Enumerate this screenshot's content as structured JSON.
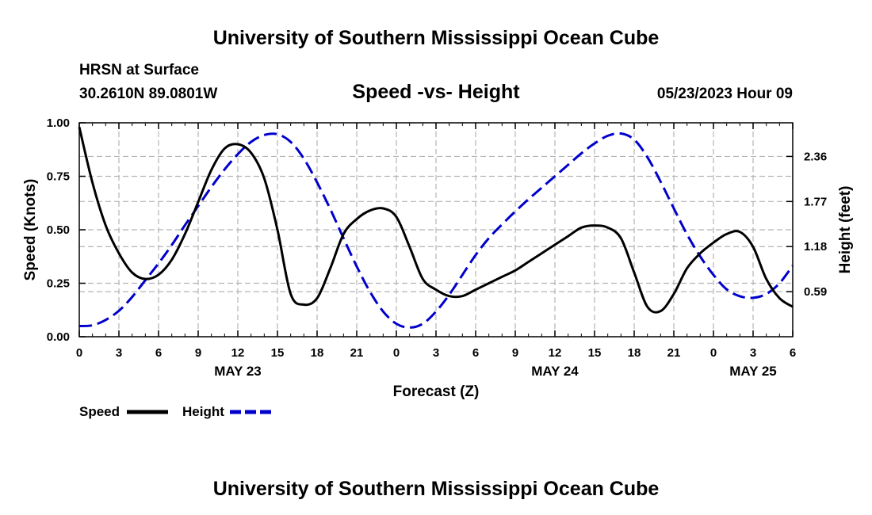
{
  "header": {
    "title": "University of Southern Mississippi Ocean Cube",
    "station": "HRSN at Surface",
    "coordinates": "30.2610N  89.0801W",
    "date_hour": "05/23/2023 Hour 09"
  },
  "footer": {
    "title": "University of Southern Mississippi Ocean Cube"
  },
  "colors": {
    "speed": "#000000",
    "height": "#0000cc",
    "grid": "#b4b4b4"
  },
  "chart_data": {
    "type": "line",
    "title": "Speed -vs- Height",
    "xlabel": "Forecast (Z)",
    "ylabel": "Speed (Knots)",
    "y2label": "Height (feet)",
    "xlim": [
      0,
      54
    ],
    "ylim": [
      0,
      1.0
    ],
    "y2lim": [
      0,
      2.8
    ],
    "x_ticks": [
      0,
      3,
      6,
      9,
      12,
      15,
      18,
      21,
      24,
      27,
      30,
      33,
      36,
      39,
      42,
      45,
      48,
      51,
      54
    ],
    "x_tick_labels": [
      "0",
      "3",
      "6",
      "9",
      "12",
      "15",
      "18",
      "21",
      "0",
      "3",
      "6",
      "9",
      "12",
      "15",
      "18",
      "21",
      "0",
      "3",
      "6"
    ],
    "date_labels": [
      {
        "x": 12,
        "label": "MAY 23"
      },
      {
        "x": 36,
        "label": "MAY 24"
      },
      {
        "x": 51,
        "label": "MAY 25"
      }
    ],
    "y_ticks": [
      0,
      0.25,
      0.5,
      0.75,
      1.0
    ],
    "y_tick_labels": [
      "0.00",
      "0.25",
      "0.50",
      "0.75",
      "1.00"
    ],
    "y2_ticks": [
      0.59,
      1.18,
      1.77,
      2.36
    ],
    "y2_tick_labels": [
      "0.59",
      "1.18",
      "1.77",
      "2.36"
    ],
    "grid": true,
    "legend": [
      {
        "name": "Speed",
        "style": "solid"
      },
      {
        "name": "Height",
        "style": "dashed"
      }
    ],
    "series": [
      {
        "name": "Speed",
        "axis": "left",
        "style": "solid",
        "x": [
          0,
          1,
          2,
          3,
          4,
          5,
          6,
          7,
          8,
          9,
          10,
          11,
          12,
          13,
          14,
          15,
          16,
          17,
          18,
          19,
          20,
          21,
          22,
          23,
          24,
          25,
          26,
          27,
          28,
          29,
          30,
          31,
          32,
          33,
          34,
          35,
          36,
          37,
          38,
          39,
          40,
          41,
          42,
          43,
          44,
          45,
          46,
          47,
          48,
          49,
          50,
          51,
          52,
          53,
          54
        ],
        "values": [
          0.98,
          0.72,
          0.52,
          0.39,
          0.3,
          0.27,
          0.29,
          0.36,
          0.48,
          0.63,
          0.78,
          0.88,
          0.9,
          0.86,
          0.74,
          0.5,
          0.2,
          0.15,
          0.18,
          0.32,
          0.48,
          0.55,
          0.59,
          0.6,
          0.56,
          0.42,
          0.27,
          0.22,
          0.19,
          0.19,
          0.22,
          0.25,
          0.28,
          0.31,
          0.35,
          0.39,
          0.43,
          0.47,
          0.51,
          0.52,
          0.51,
          0.46,
          0.3,
          0.14,
          0.12,
          0.2,
          0.32,
          0.39,
          0.44,
          0.48,
          0.49,
          0.42,
          0.27,
          0.18,
          0.14
        ],
        "extra_points": [
          [
            53.5,
            0.13
          ],
          [
            54,
            0.14
          ]
        ]
      },
      {
        "name": "Height",
        "axis": "right",
        "style": "dashed",
        "x": [
          0,
          1,
          2,
          3,
          4,
          5,
          6,
          7,
          8,
          9,
          10,
          11,
          12,
          13,
          14,
          15,
          16,
          17,
          18,
          19,
          20,
          21,
          22,
          23,
          24,
          25,
          26,
          27,
          28,
          29,
          30,
          31,
          32,
          33,
          34,
          35,
          36,
          37,
          38,
          39,
          40,
          41,
          42,
          43,
          44,
          45,
          46,
          47,
          48,
          49,
          50,
          51,
          52,
          53,
          54
        ],
        "values": [
          0.14,
          0.15,
          0.22,
          0.34,
          0.52,
          0.74,
          0.96,
          1.2,
          1.46,
          1.71,
          1.96,
          2.19,
          2.39,
          2.55,
          2.64,
          2.65,
          2.55,
          2.33,
          2.02,
          1.67,
          1.29,
          0.92,
          0.59,
          0.33,
          0.17,
          0.12,
          0.17,
          0.33,
          0.55,
          0.81,
          1.07,
          1.29,
          1.47,
          1.64,
          1.8,
          1.95,
          2.1,
          2.25,
          2.4,
          2.53,
          2.63,
          2.66,
          2.58,
          2.35,
          2.03,
          1.68,
          1.34,
          1.05,
          0.81,
          0.62,
          0.53,
          0.51,
          0.56,
          0.7,
          0.93
        ]
      }
    ]
  }
}
